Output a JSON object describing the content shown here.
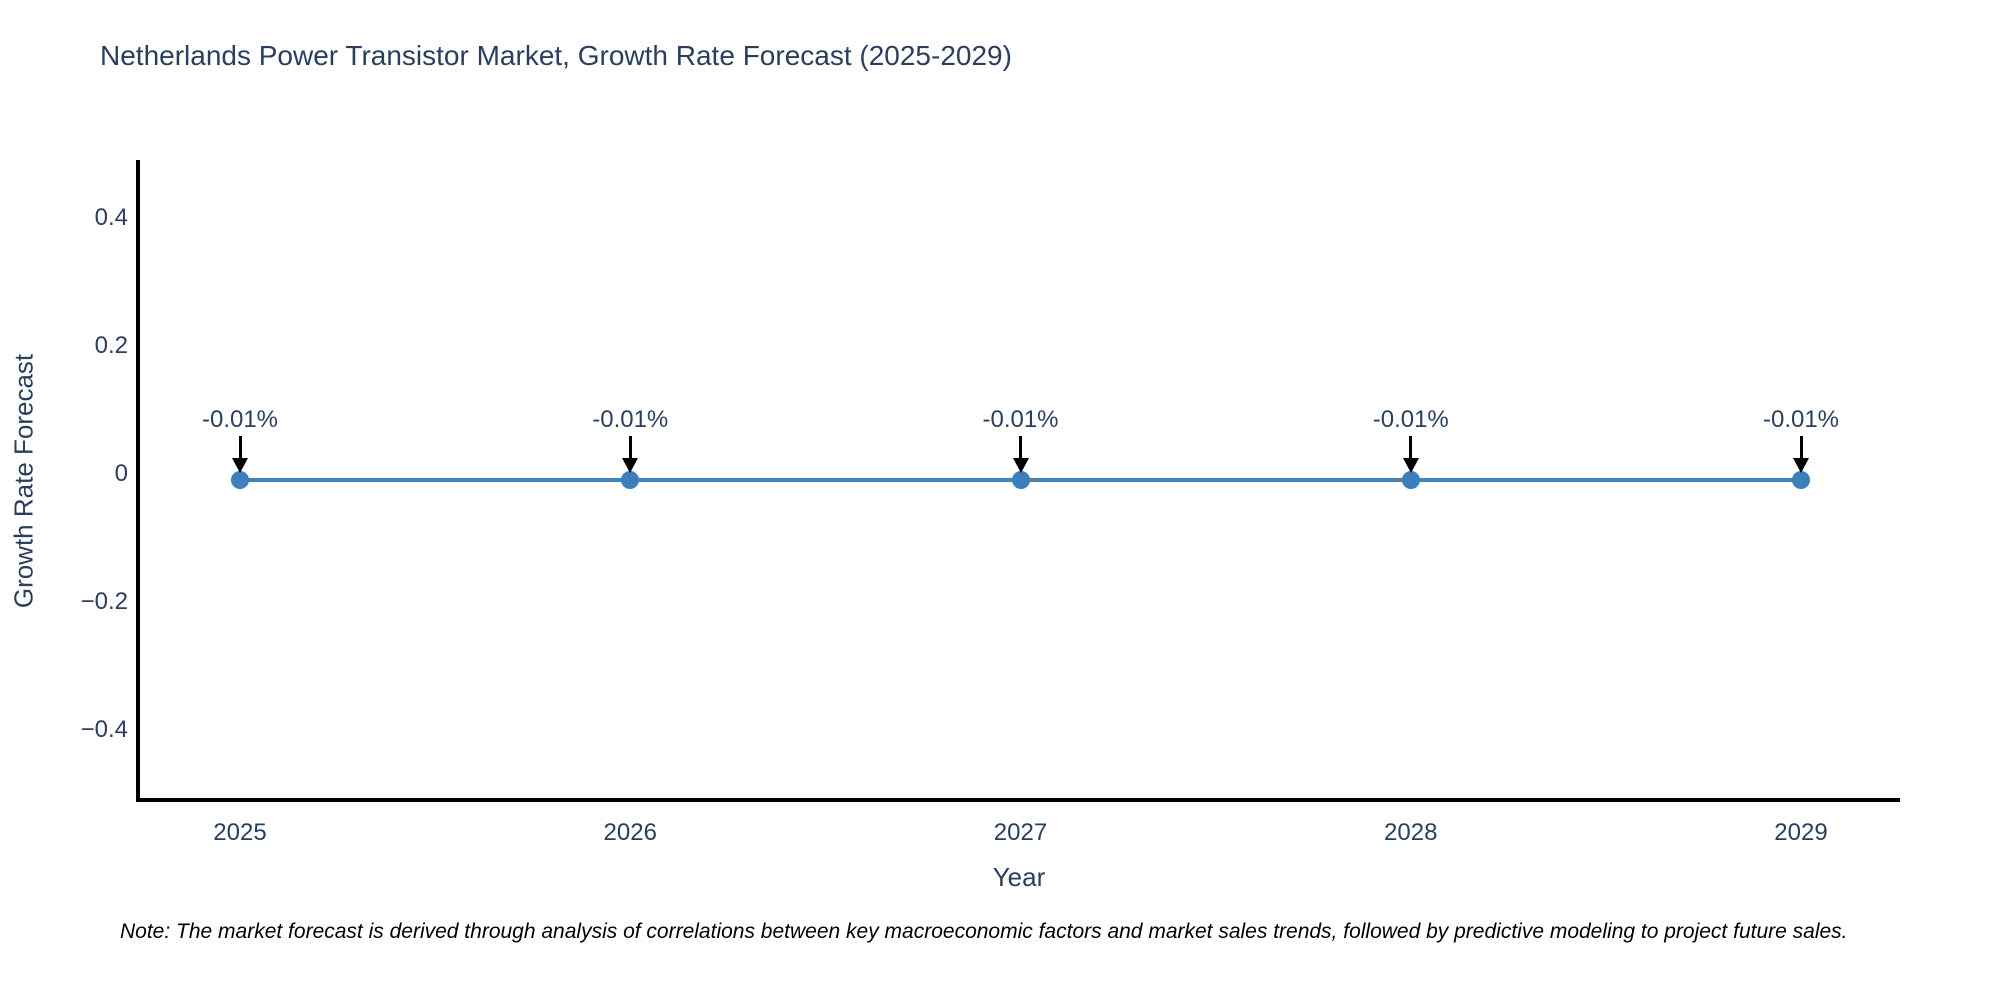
{
  "chart_data": {
    "type": "line",
    "title": "Netherlands Power Transistor Market, Growth Rate Forecast (2025-2029)",
    "xlabel": "Year",
    "ylabel": "Growth Rate Forecast",
    "categories": [
      "2025",
      "2026",
      "2027",
      "2028",
      "2029"
    ],
    "series": [
      {
        "name": "Growth Rate Forecast",
        "values": [
          -0.01,
          -0.01,
          -0.01,
          -0.01,
          -0.01
        ]
      }
    ],
    "point_labels": [
      "-0.01%",
      "-0.01%",
      "-0.01%",
      "-0.01%",
      "-0.01%"
    ],
    "ytick_values": [
      0.4,
      0.2,
      0,
      -0.2,
      -0.4
    ],
    "ytick_labels": [
      "0.4",
      "0.2",
      "0",
      "−0.2",
      "−0.4"
    ],
    "ylim": [
      -0.51,
      0.49
    ],
    "grid": false,
    "legend_visible": false,
    "note": "Note: The market forecast is derived through analysis of correlations between key macroeconomic factors and market sales trends, followed by predictive modeling to project future sales.",
    "colors": {
      "line": "#4682b4",
      "marker": "#3d7ebd",
      "arrow": "#000000",
      "title_text": "#2a3f5f",
      "axis_text": "#2a3f5f",
      "axis_line": "#000000",
      "note_text": "#000000",
      "background": "#ffffff"
    }
  }
}
